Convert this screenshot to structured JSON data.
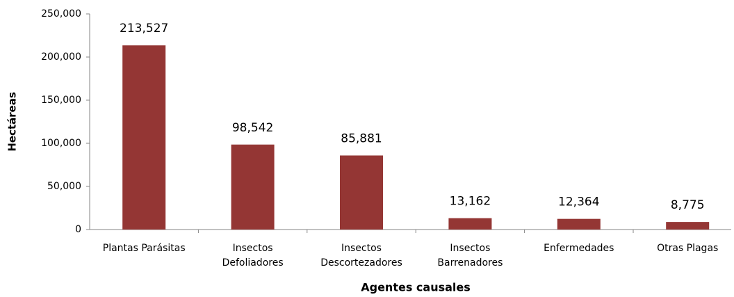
{
  "chart_data": {
    "type": "bar",
    "x_label": "Agentes causales",
    "y_label": "Hectáreas",
    "categories": [
      "Plantas Parásitas",
      "Insectos\nDefoliadores",
      "Insectos\nDescortezadores",
      "Insectos\nBarrenadores",
      "Enfermedades",
      "Otras Plagas"
    ],
    "values": [
      213527,
      98542,
      85881,
      13162,
      12364,
      8775
    ],
    "value_labels": [
      "213,527",
      "98,542",
      "85,881",
      "13,162",
      "12,364",
      "8,775"
    ],
    "color": "#943634",
    "ylim": [
      0,
      250000
    ],
    "yticks": [
      0,
      {
        "value": 50000,
        "label": "50,000"
      },
      {
        "value": 100000,
        "label": "100,000"
      },
      {
        "value": 150000,
        "label": "150,000"
      },
      {
        "value": 200000,
        "label": "200,000"
      },
      {
        "value": 250000,
        "label": "250,000"
      }
    ],
    "grid": false
  }
}
